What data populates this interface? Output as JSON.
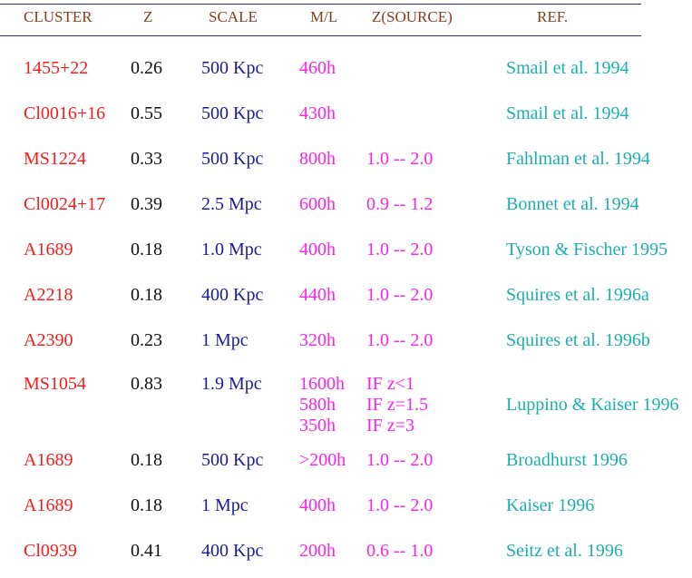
{
  "headers": {
    "cluster": "CLUSTER",
    "z": "Z",
    "scale": "SCALE",
    "ml": "M/L",
    "zsource": "Z(SOURCE)",
    "ref": "REF."
  },
  "rows": [
    {
      "cluster": "1455+22",
      "z": "0.26",
      "scale": "500  Kpc",
      "ml": [
        "460h"
      ],
      "zsource": [],
      "ref": "Smail et al.  1994"
    },
    {
      "cluster": "Cl0016+16",
      "z": "0.55",
      "scale": "500  Kpc",
      "ml": [
        "430h"
      ],
      "zsource": [],
      "ref": "Smail  et  al. 1994"
    },
    {
      "cluster": "MS1224",
      "z": "0.33",
      "scale": "500  Kpc",
      "ml": [
        "800h"
      ],
      "zsource": [
        "1.0  --  2.0"
      ],
      "ref": "Fahlman  et  al.  1994"
    },
    {
      "cluster": "Cl0024+17",
      "z": "0.39",
      "scale": "2.5  Mpc",
      "ml": [
        "600h"
      ],
      "zsource": [
        "0.9  --  1.2"
      ],
      "ref": "Bonnet et al.  1994"
    },
    {
      "cluster": "A1689",
      "z": "0.18",
      "scale": "1.0  Mpc",
      "ml": [
        "400h"
      ],
      "zsource": [
        "1.0  --  2.0"
      ],
      "ref": "Tyson &  Fischer  1995"
    },
    {
      "cluster": "A2218",
      "z": "0.18",
      "scale": "400 Kpc",
      "ml": [
        "440h"
      ],
      "zsource": [
        "1.0  --  2.0"
      ],
      "ref": "Squires et  al.  1996a"
    },
    {
      "cluster": "A2390",
      "z": "0.23",
      "scale": "1 Mpc",
      "ml": [
        "320h"
      ],
      "zsource": [
        "1.0  --  2.0"
      ],
      "ref": "Squires  et  al.   1996b"
    },
    {
      "cluster": "MS1054",
      "z": "0.83",
      "scale": "1.9 Mpc",
      "ml": [
        "1600h",
        "580h",
        "350h"
      ],
      "zsource": [
        "IF       z<1",
        "IF       z=1.5",
        "IF      z=3"
      ],
      "ref": "Luppino  &  Kaiser 1996"
    },
    {
      "cluster": "A1689",
      "z": "0.18",
      "scale": "500 Kpc",
      "ml": [
        ">200h"
      ],
      "zsource": [
        "1.0  --  2.0"
      ],
      "ref": "Broadhurst 1996"
    },
    {
      "cluster": "A1689",
      "z": "0.18",
      "scale": "1 Mpc",
      "ml": [
        "400h"
      ],
      "zsource": [
        "1.0  --  2.0"
      ],
      "ref": "Kaiser 1996"
    },
    {
      "cluster": "Cl0939",
      "z": "0.41",
      "scale": "400 Kpc",
      "ml": [
        "200h"
      ],
      "zsource": [
        "0.6  --  1.0"
      ],
      "ref": "Seitz  et  al.   1996"
    }
  ],
  "colors": {
    "header": "#8b3a1a",
    "cluster": "#ff1a1a",
    "z": "#111111",
    "scale": "#1a1a9a",
    "ml": "#ff22ee",
    "zsource": "#ff22ee",
    "ref": "#1ab0b0",
    "rule": "#2a2a8a"
  }
}
